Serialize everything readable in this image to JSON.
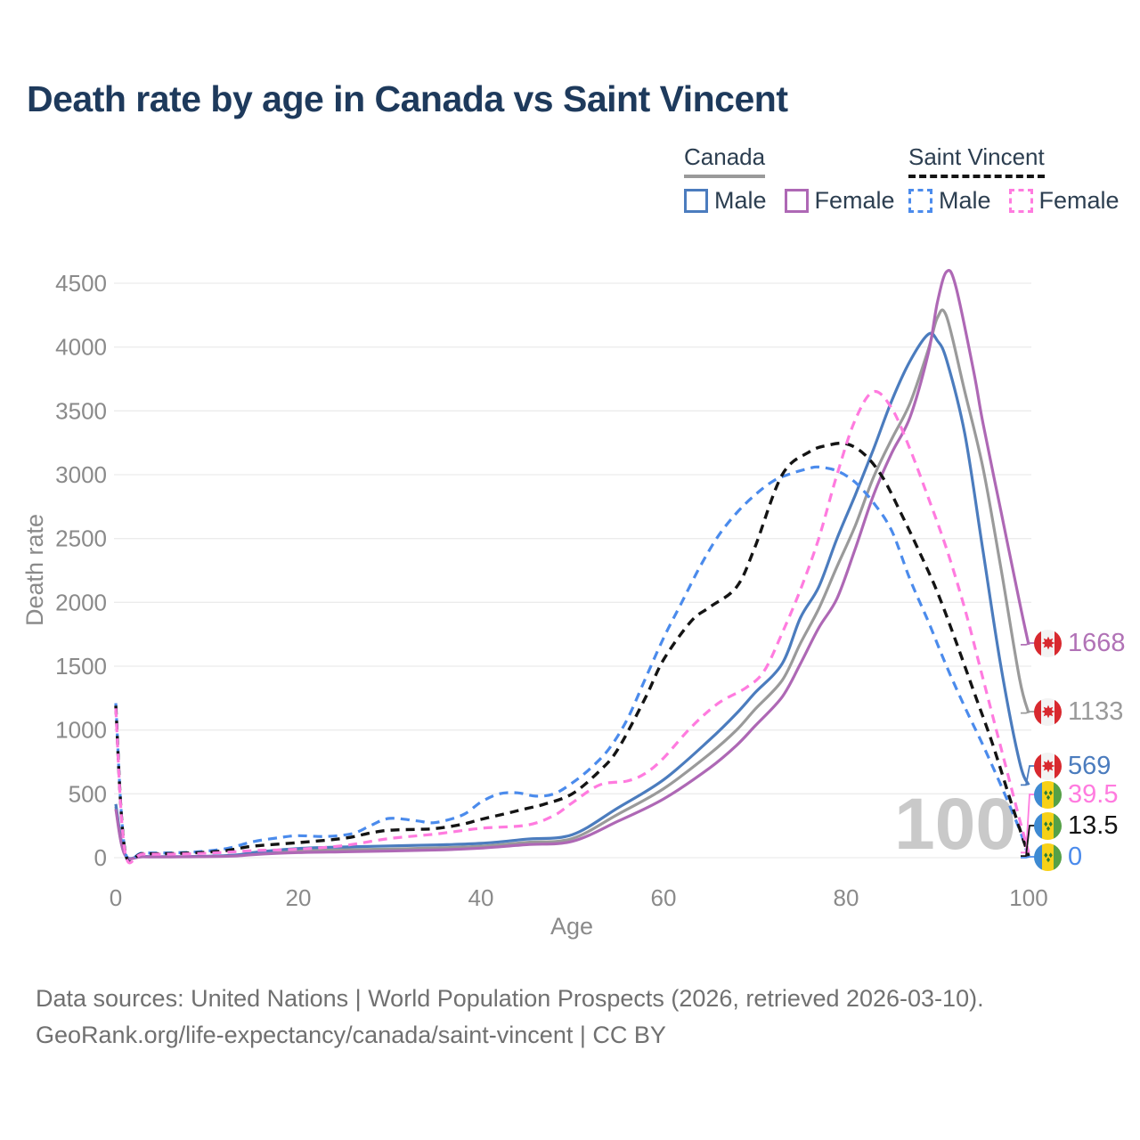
{
  "title": "Death rate by age in Canada vs Saint Vincent",
  "legend": {
    "canada": {
      "title": "Canada",
      "items": [
        {
          "label": "Male"
        },
        {
          "label": "Female"
        }
      ]
    },
    "saint_vincent": {
      "title": "Saint Vincent",
      "items": [
        {
          "label": "Male"
        },
        {
          "label": "Female"
        }
      ]
    }
  },
  "footer": {
    "line1": "Data sources: United Nations | World Population Prospects (2026, retrieved 2026-03-10).",
    "line2": "GeoRank.org/life-expectancy/canada/saint-vincent | CC BY"
  },
  "chart_data": {
    "type": "line",
    "title": "Death rate by age in Canada vs Saint Vincent",
    "xlabel": "Age",
    "ylabel": "Death rate",
    "xlim": [
      0,
      100
    ],
    "ylim": [
      0,
      4500
    ],
    "xticks": [
      0,
      20,
      40,
      60,
      80,
      100
    ],
    "yticks": [
      0,
      500,
      1000,
      1500,
      2000,
      2500,
      3000,
      3500,
      4000,
      4500
    ],
    "grid": "horizontal",
    "legend_position": "top-right",
    "watermark": "100",
    "series": [
      {
        "id": "canada-male",
        "name": "Canada Male",
        "color": "#4b7cbe",
        "dash": "solid",
        "points": [
          [
            0,
            420
          ],
          [
            1,
            28
          ],
          [
            3,
            10
          ],
          [
            8,
            9
          ],
          [
            13,
            20
          ],
          [
            15,
            40
          ],
          [
            20,
            72
          ],
          [
            25,
            84
          ],
          [
            30,
            92
          ],
          [
            35,
            100
          ],
          [
            40,
            112
          ],
          [
            45,
            145
          ],
          [
            50,
            180
          ],
          [
            55,
            390
          ],
          [
            60,
            610
          ],
          [
            65,
            920
          ],
          [
            68,
            1130
          ],
          [
            70,
            1290
          ],
          [
            73,
            1520
          ],
          [
            75,
            1880
          ],
          [
            77,
            2120
          ],
          [
            79,
            2500
          ],
          [
            81,
            2840
          ],
          [
            83,
            3200
          ],
          [
            85,
            3580
          ],
          [
            87,
            3890
          ],
          [
            89,
            4100
          ],
          [
            90,
            4050
          ],
          [
            91,
            3900
          ],
          [
            93,
            3320
          ],
          [
            95,
            2400
          ],
          [
            97,
            1480
          ],
          [
            99,
            750
          ],
          [
            100,
            569
          ]
        ]
      },
      {
        "id": "canada-total",
        "name": "Canada",
        "color": "#9a9a9a",
        "dash": "solid",
        "points": [
          [
            0,
            400
          ],
          [
            1,
            24
          ],
          [
            3,
            8
          ],
          [
            8,
            8
          ],
          [
            13,
            16
          ],
          [
            15,
            30
          ],
          [
            20,
            55
          ],
          [
            25,
            62
          ],
          [
            30,
            68
          ],
          [
            35,
            76
          ],
          [
            40,
            90
          ],
          [
            45,
            120
          ],
          [
            50,
            150
          ],
          [
            55,
            340
          ],
          [
            60,
            540
          ],
          [
            65,
            810
          ],
          [
            68,
            1000
          ],
          [
            70,
            1160
          ],
          [
            73,
            1390
          ],
          [
            75,
            1680
          ],
          [
            77,
            1950
          ],
          [
            79,
            2280
          ],
          [
            81,
            2600
          ],
          [
            83,
            2980
          ],
          [
            85,
            3280
          ],
          [
            87,
            3560
          ],
          [
            89,
            3980
          ],
          [
            90,
            4230
          ],
          [
            91,
            4240
          ],
          [
            93,
            3650
          ],
          [
            95,
            3050
          ],
          [
            97,
            2250
          ],
          [
            99,
            1400
          ],
          [
            100,
            1133
          ]
        ]
      },
      {
        "id": "canada-female",
        "name": "Canada Female",
        "color": "#ae68b5",
        "dash": "solid",
        "points": [
          [
            0,
            380
          ],
          [
            1,
            21
          ],
          [
            3,
            7
          ],
          [
            8,
            7
          ],
          [
            13,
            13
          ],
          [
            15,
            24
          ],
          [
            20,
            40
          ],
          [
            25,
            46
          ],
          [
            30,
            52
          ],
          [
            35,
            60
          ],
          [
            40,
            75
          ],
          [
            45,
            102
          ],
          [
            50,
            128
          ],
          [
            55,
            285
          ],
          [
            60,
            460
          ],
          [
            65,
            700
          ],
          [
            68,
            880
          ],
          [
            70,
            1030
          ],
          [
            73,
            1260
          ],
          [
            75,
            1520
          ],
          [
            77,
            1800
          ],
          [
            79,
            2030
          ],
          [
            81,
            2420
          ],
          [
            83,
            2840
          ],
          [
            85,
            3170
          ],
          [
            87,
            3450
          ],
          [
            89,
            3950
          ],
          [
            90,
            4350
          ],
          [
            91,
            4590
          ],
          [
            92,
            4480
          ],
          [
            94,
            3800
          ],
          [
            95,
            3400
          ],
          [
            97,
            2700
          ],
          [
            99,
            2000
          ],
          [
            100,
            1668
          ]
        ]
      },
      {
        "id": "sv-male",
        "name": "Saint Vincent Male",
        "color": "#4b8bec",
        "dash": "dashed",
        "points": [
          [
            0,
            1210
          ],
          [
            1,
            62
          ],
          [
            3,
            38
          ],
          [
            8,
            42
          ],
          [
            12,
            70
          ],
          [
            15,
            125
          ],
          [
            18,
            158
          ],
          [
            20,
            172
          ],
          [
            23,
            166
          ],
          [
            26,
            190
          ],
          [
            28,
            255
          ],
          [
            30,
            308
          ],
          [
            33,
            288
          ],
          [
            35,
            275
          ],
          [
            38,
            335
          ],
          [
            40,
            435
          ],
          [
            42,
            500
          ],
          [
            44,
            508
          ],
          [
            46,
            482
          ],
          [
            48,
            500
          ],
          [
            50,
            585
          ],
          [
            52,
            700
          ],
          [
            54,
            850
          ],
          [
            56,
            1080
          ],
          [
            58,
            1400
          ],
          [
            60,
            1720
          ],
          [
            62,
            2000
          ],
          [
            64,
            2280
          ],
          [
            66,
            2520
          ],
          [
            68,
            2700
          ],
          [
            70,
            2840
          ],
          [
            72,
            2950
          ],
          [
            74,
            3010
          ],
          [
            76,
            3050
          ],
          [
            77,
            3060
          ],
          [
            79,
            3030
          ],
          [
            81,
            2940
          ],
          [
            83,
            2780
          ],
          [
            85,
            2560
          ],
          [
            87,
            2180
          ],
          [
            89,
            1850
          ],
          [
            91,
            1500
          ],
          [
            93,
            1180
          ],
          [
            95,
            880
          ],
          [
            97,
            560
          ],
          [
            99,
            220
          ],
          [
            100,
            0
          ]
        ]
      },
      {
        "id": "sv-total",
        "name": "Saint Vincent",
        "color": "#141414",
        "dash": "dashed",
        "points": [
          [
            0,
            1190
          ],
          [
            1,
            55
          ],
          [
            3,
            32
          ],
          [
            8,
            36
          ],
          [
            12,
            55
          ],
          [
            15,
            90
          ],
          [
            20,
            118
          ],
          [
            25,
            152
          ],
          [
            28,
            195
          ],
          [
            30,
            215
          ],
          [
            33,
            222
          ],
          [
            35,
            228
          ],
          [
            38,
            262
          ],
          [
            40,
            300
          ],
          [
            43,
            350
          ],
          [
            45,
            385
          ],
          [
            47,
            420
          ],
          [
            50,
            500
          ],
          [
            53,
            680
          ],
          [
            55,
            850
          ],
          [
            58,
            1250
          ],
          [
            60,
            1550
          ],
          [
            63,
            1850
          ],
          [
            65,
            1960
          ],
          [
            68,
            2120
          ],
          [
            70,
            2430
          ],
          [
            73,
            3000
          ],
          [
            76,
            3180
          ],
          [
            78,
            3230
          ],
          [
            80,
            3243
          ],
          [
            82,
            3160
          ],
          [
            84,
            2980
          ],
          [
            86,
            2700
          ],
          [
            88,
            2400
          ],
          [
            90,
            2080
          ],
          [
            92,
            1700
          ],
          [
            94,
            1300
          ],
          [
            96,
            900
          ],
          [
            98,
            450
          ],
          [
            100,
            13.5
          ]
        ]
      },
      {
        "id": "sv-female",
        "name": "Saint Vincent Female",
        "color": "#ff7bdf",
        "dash": "dashed",
        "points": [
          [
            0,
            1170
          ],
          [
            1,
            48
          ],
          [
            3,
            28
          ],
          [
            8,
            30
          ],
          [
            12,
            42
          ],
          [
            15,
            55
          ],
          [
            20,
            66
          ],
          [
            25,
            95
          ],
          [
            30,
            150
          ],
          [
            35,
            185
          ],
          [
            40,
            230
          ],
          [
            45,
            255
          ],
          [
            48,
            330
          ],
          [
            50,
            430
          ],
          [
            53,
            570
          ],
          [
            56,
            600
          ],
          [
            58,
            660
          ],
          [
            60,
            780
          ],
          [
            63,
            1020
          ],
          [
            66,
            1210
          ],
          [
            69,
            1330
          ],
          [
            71,
            1460
          ],
          [
            73,
            1760
          ],
          [
            75,
            2100
          ],
          [
            77,
            2500
          ],
          [
            79,
            3000
          ],
          [
            81,
            3430
          ],
          [
            83,
            3650
          ],
          [
            85,
            3520
          ],
          [
            87,
            3200
          ],
          [
            89,
            2820
          ],
          [
            91,
            2420
          ],
          [
            93,
            1950
          ],
          [
            95,
            1400
          ],
          [
            97,
            850
          ],
          [
            99,
            300
          ],
          [
            100,
            39.5
          ]
        ]
      }
    ],
    "end_labels": [
      {
        "series": "canada-female",
        "value": "1668",
        "flag": "canada",
        "color": "#b172b6"
      },
      {
        "series": "canada-total",
        "value": "1133",
        "flag": "canada",
        "color": "#9a9a9a"
      },
      {
        "series": "canada-male",
        "value": "569",
        "flag": "canada",
        "color": "#4b7cbe"
      },
      {
        "series": "sv-female",
        "value": "39.5",
        "flag": "saint-vincent",
        "color": "#ff7bdf"
      },
      {
        "series": "sv-total",
        "value": "13.5",
        "flag": "saint-vincent",
        "color": "#141414"
      },
      {
        "series": "sv-male",
        "value": "0",
        "flag": "saint-vincent",
        "color": "#4b8bec"
      }
    ],
    "flag_colors": {
      "canada_red": "#d8292f",
      "saint_vincent_blue": "#3e8ad2",
      "saint_vincent_yellow": "#f7d117",
      "saint_vincent_green": "#55a146",
      "saint_vincent_diamond_green": "#2e7d32"
    }
  }
}
